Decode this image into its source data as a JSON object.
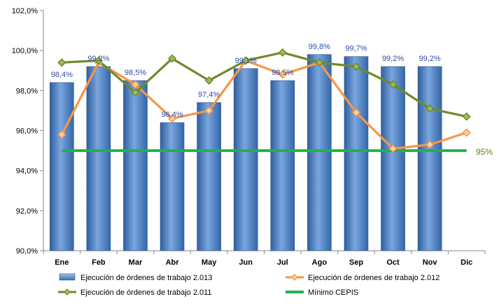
{
  "chart_data": {
    "type": "bar",
    "categories": [
      "Ene",
      "Feb",
      "Mar",
      "Abr",
      "May",
      "Jun",
      "Jul",
      "Ago",
      "Sep",
      "Oct",
      "Nov",
      "Dic"
    ],
    "ylim": [
      90,
      102
    ],
    "yticks": [
      90,
      92,
      94,
      96,
      98,
      100,
      102
    ],
    "ytick_labels": [
      "90,0%",
      "92,0%",
      "94,0%",
      "96,0%",
      "98,0%",
      "100,0%",
      "102,0%"
    ],
    "series": [
      {
        "name": "Ejecución de órdenes de trabajo 2.013",
        "kind": "bar",
        "values": [
          98.4,
          99.2,
          98.5,
          96.4,
          97.4,
          99.1,
          98.5,
          99.8,
          99.7,
          99.2,
          99.2,
          null
        ],
        "labels": [
          "98,4%",
          "99,2%",
          "98,5%",
          "96,4%",
          "97,4%",
          "99,1%",
          "98,5%",
          "99,8%",
          "99,7%",
          "99,2%",
          "99,2%",
          ""
        ],
        "color": "#4f81bd"
      },
      {
        "name": "Ejecución de órdenes de trabajo 2.012",
        "kind": "line",
        "marker": "diamond",
        "values": [
          95.8,
          99.4,
          98.3,
          96.6,
          97.0,
          99.5,
          98.8,
          99.4,
          96.9,
          95.1,
          95.3,
          95.9
        ],
        "color": "#f79646"
      },
      {
        "name": "Ejecución de órdenes de trabajo 2.011",
        "kind": "line",
        "marker": "diamond",
        "values": [
          99.4,
          99.5,
          97.9,
          99.6,
          98.5,
          99.5,
          99.9,
          99.4,
          99.2,
          98.3,
          97.1,
          96.7
        ],
        "color": "#6f8a2a"
      },
      {
        "name": "Mínimo CEPIS",
        "kind": "line",
        "values": [
          95,
          95,
          95,
          95,
          95,
          95,
          95,
          95,
          95,
          95,
          95,
          95
        ],
        "color": "#22b14c"
      }
    ],
    "annotation": "95%",
    "grid": false,
    "legend_position": "bottom"
  }
}
